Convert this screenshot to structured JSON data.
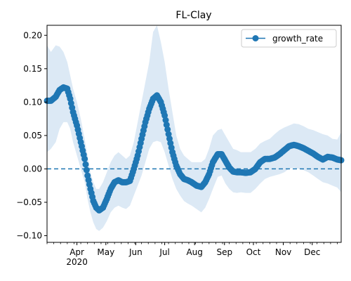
{
  "chart_data": {
    "type": "line",
    "title": "FL-Clay",
    "xlabel": "",
    "ylabel": "",
    "x_range": [
      "2020-03-01",
      "2020-12-31"
    ],
    "ylim": [
      -0.11,
      0.215
    ],
    "yticks": [
      -0.1,
      -0.05,
      0.0,
      0.05,
      0.1,
      0.15,
      0.2
    ],
    "ytick_labels": [
      "−0.10",
      "−0.05",
      "0.00",
      "0.05",
      "0.10",
      "0.15",
      "0.20"
    ],
    "xticks": [
      {
        "date": "2020-04-01",
        "label": "Apr",
        "sublabel": "2020"
      },
      {
        "date": "2020-05-01",
        "label": "May"
      },
      {
        "date": "2020-06-01",
        "label": "Jun"
      },
      {
        "date": "2020-07-01",
        "label": "Jul"
      },
      {
        "date": "2020-08-01",
        "label": "Aug"
      },
      {
        "date": "2020-09-01",
        "label": "Sep"
      },
      {
        "date": "2020-10-01",
        "label": "Oct"
      },
      {
        "date": "2020-11-01",
        "label": "Nov"
      },
      {
        "date": "2020-12-01",
        "label": "Dec"
      }
    ],
    "grid": false,
    "legend": {
      "position": "top-right",
      "entries": [
        "growth_rate"
      ]
    },
    "reference_line": {
      "y": 0.0,
      "style": "dashed"
    },
    "colors": {
      "series": "#1f77b4",
      "band": "#dce9f5",
      "ref_line": "#1f77b4"
    },
    "series": [
      {
        "name": "growth_rate",
        "marker": "circle",
        "x": [
          "2020-03-01",
          "2020-03-05",
          "2020-03-10",
          "2020-03-14",
          "2020-03-18",
          "2020-03-22",
          "2020-03-25",
          "2020-03-28",
          "2020-04-01",
          "2020-04-05",
          "2020-04-09",
          "2020-04-12",
          "2020-04-15",
          "2020-04-18",
          "2020-04-21",
          "2020-04-24",
          "2020-04-28",
          "2020-05-02",
          "2020-05-06",
          "2020-05-10",
          "2020-05-14",
          "2020-05-18",
          "2020-05-22",
          "2020-05-26",
          "2020-05-30",
          "2020-06-03",
          "2020-06-07",
          "2020-06-11",
          "2020-06-15",
          "2020-06-19",
          "2020-06-23",
          "2020-06-27",
          "2020-07-01",
          "2020-07-05",
          "2020-07-09",
          "2020-07-13",
          "2020-07-17",
          "2020-07-21",
          "2020-07-25",
          "2020-07-29",
          "2020-08-03",
          "2020-08-08",
          "2020-08-12",
          "2020-08-16",
          "2020-08-20",
          "2020-08-25",
          "2020-08-29",
          "2020-09-02",
          "2020-09-06",
          "2020-09-10",
          "2020-09-14",
          "2020-09-18",
          "2020-09-23",
          "2020-09-28",
          "2020-10-03",
          "2020-10-08",
          "2020-10-13",
          "2020-10-18",
          "2020-10-23",
          "2020-10-28",
          "2020-11-02",
          "2020-11-07",
          "2020-11-12",
          "2020-11-17",
          "2020-11-22",
          "2020-11-27",
          "2020-12-02",
          "2020-12-07",
          "2020-12-12",
          "2020-12-17",
          "2020-12-22",
          "2020-12-27",
          "2020-12-31"
        ],
        "values": [
          0.102,
          0.102,
          0.108,
          0.118,
          0.122,
          0.12,
          0.105,
          0.085,
          0.065,
          0.04,
          0.015,
          -0.01,
          -0.03,
          -0.048,
          -0.058,
          -0.062,
          -0.058,
          -0.045,
          -0.03,
          -0.02,
          -0.017,
          -0.02,
          -0.02,
          -0.018,
          0.0,
          0.02,
          0.045,
          0.07,
          0.09,
          0.105,
          0.11,
          0.1,
          0.08,
          0.052,
          0.025,
          0.005,
          -0.008,
          -0.015,
          -0.017,
          -0.02,
          -0.025,
          -0.027,
          -0.02,
          -0.008,
          0.01,
          0.022,
          0.022,
          0.012,
          0.002,
          -0.004,
          -0.005,
          -0.005,
          -0.006,
          -0.005,
          0.0,
          0.01,
          0.015,
          0.015,
          0.017,
          0.022,
          0.028,
          0.034,
          0.036,
          0.034,
          0.031,
          0.027,
          0.023,
          0.018,
          0.014,
          0.018,
          0.017,
          0.014,
          0.013
        ],
        "band_upper": [
          0.185,
          0.175,
          0.185,
          0.183,
          0.175,
          0.16,
          0.14,
          0.12,
          0.1,
          0.075,
          0.045,
          0.02,
          -0.005,
          -0.02,
          -0.03,
          -0.03,
          -0.02,
          -0.005,
          0.01,
          0.02,
          0.025,
          0.02,
          0.015,
          0.02,
          0.04,
          0.07,
          0.1,
          0.13,
          0.16,
          0.205,
          0.215,
          0.19,
          0.16,
          0.12,
          0.085,
          0.05,
          0.03,
          0.02,
          0.015,
          0.01,
          0.01,
          0.01,
          0.015,
          0.03,
          0.05,
          0.058,
          0.06,
          0.05,
          0.04,
          0.03,
          0.028,
          0.025,
          0.025,
          0.025,
          0.03,
          0.038,
          0.042,
          0.045,
          0.052,
          0.058,
          0.062,
          0.065,
          0.068,
          0.067,
          0.064,
          0.06,
          0.058,
          0.055,
          0.052,
          0.05,
          0.045,
          0.044,
          0.055
        ],
        "band_lower": [
          0.025,
          0.03,
          0.04,
          0.06,
          0.07,
          0.07,
          0.06,
          0.04,
          0.02,
          0.0,
          -0.02,
          -0.045,
          -0.065,
          -0.08,
          -0.09,
          -0.093,
          -0.088,
          -0.078,
          -0.065,
          -0.058,
          -0.055,
          -0.058,
          -0.06,
          -0.055,
          -0.04,
          -0.025,
          -0.01,
          0.01,
          0.03,
          0.04,
          0.042,
          0.04,
          0.025,
          0.005,
          -0.015,
          -0.03,
          -0.04,
          -0.048,
          -0.052,
          -0.055,
          -0.06,
          -0.065,
          -0.058,
          -0.045,
          -0.03,
          -0.012,
          -0.01,
          -0.022,
          -0.03,
          -0.035,
          -0.036,
          -0.035,
          -0.036,
          -0.036,
          -0.03,
          -0.022,
          -0.015,
          -0.012,
          -0.01,
          -0.008,
          -0.005,
          0.0,
          0.002,
          0.0,
          -0.002,
          -0.005,
          -0.01,
          -0.015,
          -0.02,
          -0.022,
          -0.025,
          -0.028,
          -0.035
        ]
      }
    ]
  }
}
